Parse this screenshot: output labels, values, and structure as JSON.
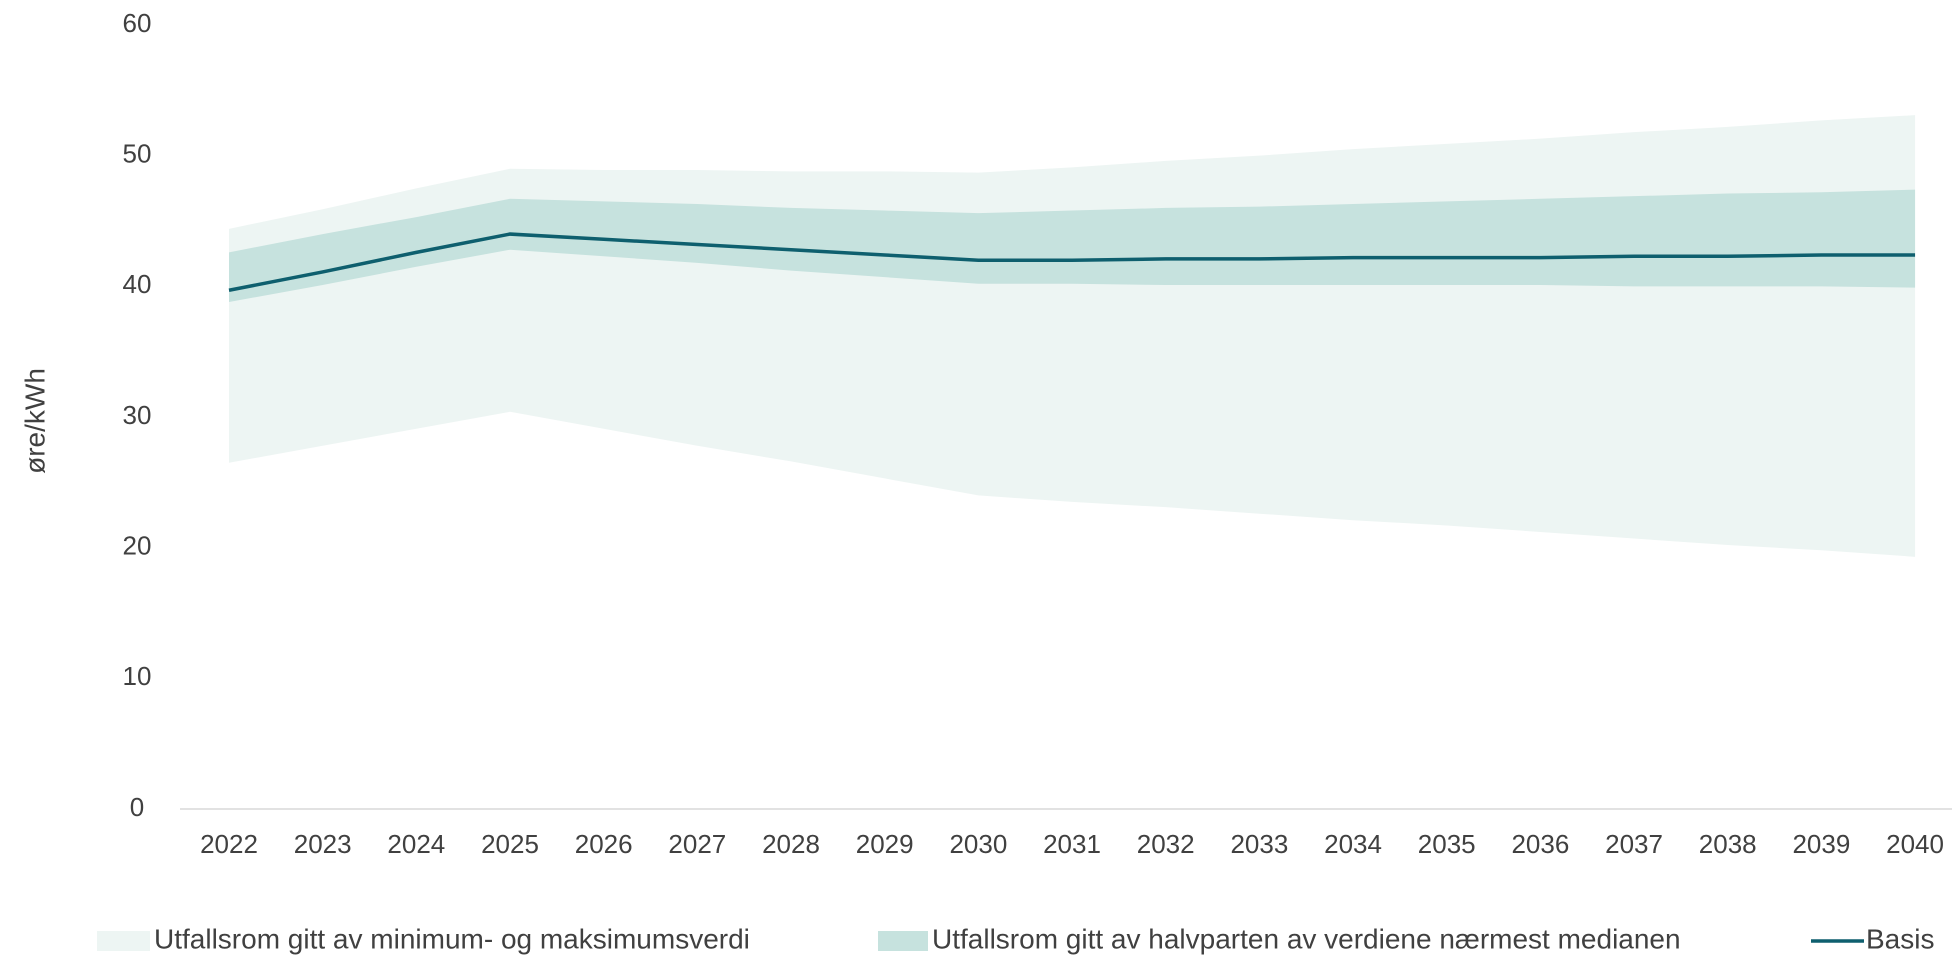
{
  "chart_data": {
    "type": "line",
    "y_label": "øre/kWh",
    "categories": [
      "2022",
      "2023",
      "2024",
      "2025",
      "2026",
      "2027",
      "2028",
      "2029",
      "2030",
      "2031",
      "2032",
      "2033",
      "2034",
      "2035",
      "2036",
      "2037",
      "2038",
      "2039",
      "2040"
    ],
    "ylim": [
      0,
      60
    ],
    "yticks": [
      0,
      10,
      20,
      30,
      40,
      50,
      60
    ],
    "bands": [
      {
        "name": "Utfallsrom gitt av minimum- og maksimumsverdi",
        "color": "#edf5f3",
        "lower": [
          26.5,
          27.8,
          29.1,
          30.4,
          29.1,
          27.8,
          26.6,
          25.3,
          24.0,
          23.5,
          23.1,
          22.6,
          22.1,
          21.7,
          21.2,
          20.7,
          20.2,
          19.8,
          19.3
        ],
        "upper": [
          44.4,
          45.9,
          47.5,
          49.0,
          48.9,
          48.9,
          48.8,
          48.8,
          48.7,
          49.1,
          49.6,
          50.0,
          50.5,
          50.9,
          51.3,
          51.8,
          52.2,
          52.7,
          53.1
        ]
      },
      {
        "name": "Utfallsrom gitt av halvparten av verdiene nærmest medianen",
        "color": "#c6e2de",
        "lower": [
          38.8,
          40.1,
          41.5,
          42.8,
          42.3,
          41.8,
          41.2,
          40.7,
          40.2,
          40.2,
          40.1,
          40.1,
          40.1,
          40.1,
          40.1,
          40.0,
          40.0,
          40.0,
          39.9
        ],
        "upper": [
          42.6,
          44.0,
          45.3,
          46.7,
          46.5,
          46.3,
          46.0,
          45.8,
          45.6,
          45.8,
          46.0,
          46.1,
          46.3,
          46.5,
          46.7,
          46.9,
          47.1,
          47.2,
          47.4
        ]
      }
    ],
    "series": [
      {
        "name": "Basis",
        "color": "#0e5f6e",
        "values": [
          39.7,
          41.1,
          42.6,
          44.0,
          43.6,
          43.2,
          42.8,
          42.4,
          42.0,
          42.0,
          42.1,
          42.1,
          42.2,
          42.2,
          42.2,
          42.3,
          42.3,
          42.4,
          42.4
        ]
      }
    ]
  }
}
